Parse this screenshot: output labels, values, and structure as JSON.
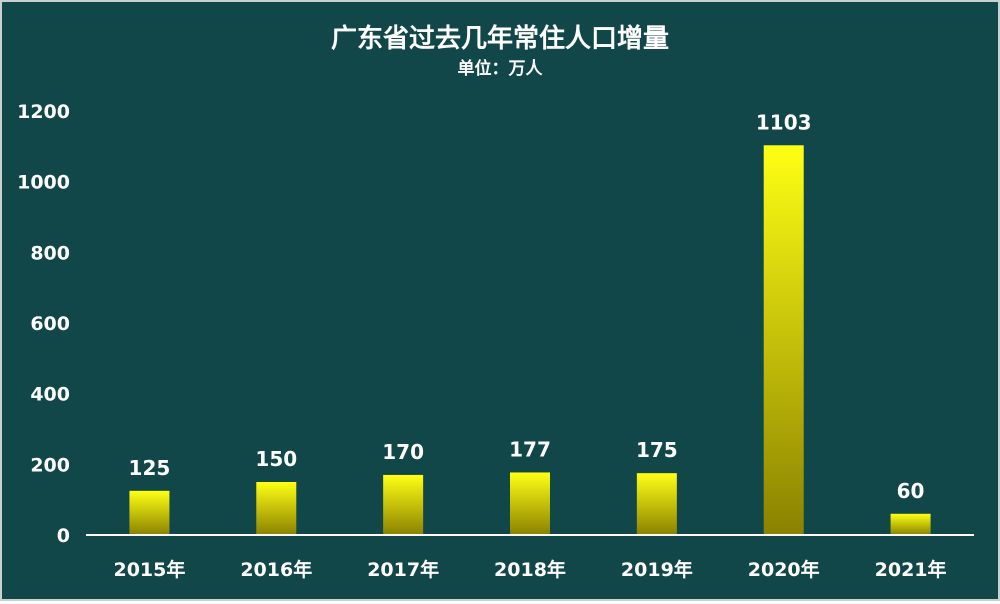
{
  "chart_data": {
    "type": "bar",
    "title": "广东省过去几年常住人口增量",
    "subtitle": "单位：万人",
    "categories": [
      "2015年",
      "2016年",
      "2017年",
      "2018年",
      "2019年",
      "2020年",
      "2021年"
    ],
    "values": [
      125,
      150,
      170,
      177,
      175,
      1103,
      60
    ],
    "data_labels": [
      "125",
      "150",
      "170",
      "177",
      "175",
      "1103",
      "60"
    ],
    "ylim": [
      0,
      1200
    ],
    "yticks": [
      0,
      200,
      400,
      600,
      800,
      1000,
      1200
    ],
    "ytick_labels": [
      "0",
      "200",
      "400",
      "600",
      "800",
      "1000",
      "1200"
    ],
    "grid": false,
    "legend": "none",
    "colors": {
      "background": "#12474a",
      "bar_top": "#ffff14",
      "bar_bottom": "#8a8200",
      "text": "#ffffff",
      "axis": "#ffffff"
    }
  }
}
